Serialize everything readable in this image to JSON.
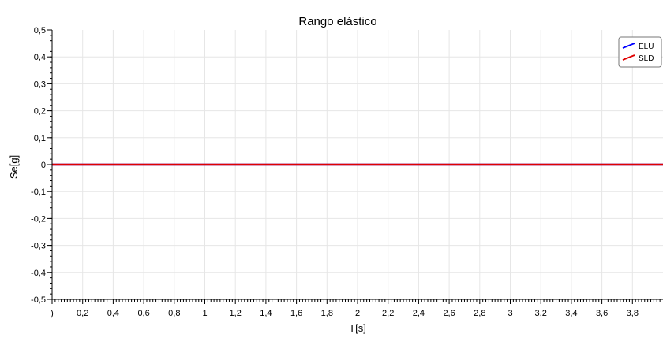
{
  "chart_data": {
    "type": "line",
    "title": "Rango elástico",
    "xlabel": "T[s]",
    "ylabel": "Se[g]",
    "xlim": [
      0,
      4
    ],
    "ylim": [
      -0.5,
      0.5
    ],
    "xticks": [
      0,
      0.2,
      0.4,
      0.6,
      0.8,
      1,
      1.2,
      1.4,
      1.6,
      1.8,
      2,
      2.2,
      2.4,
      2.6,
      2.8,
      3,
      3.2,
      3.4,
      3.6,
      3.8
    ],
    "xtick_labels": [
      ")",
      "0,2",
      "0,4",
      "0,6",
      "0,8",
      "1",
      "1,2",
      "1,4",
      "1,6",
      "1,8",
      "2",
      "2,2",
      "2,4",
      "2,6",
      "2,8",
      "3",
      "3,2",
      "3,4",
      "3,6",
      "3,8"
    ],
    "yticks": [
      0.5,
      0.4,
      0.3,
      0.2,
      0.1,
      0,
      -0.1,
      -0.2,
      -0.3,
      -0.4,
      -0.5
    ],
    "ytick_labels": [
      "0,5",
      "0,4",
      "0,3",
      "0,2",
      "0,1",
      "0",
      "-0,1",
      "-0,2",
      "-0,3",
      "-0,4",
      "-0,5"
    ],
    "grid": true,
    "legend_position": "top-right",
    "series": [
      {
        "name": "ELU",
        "color": "#0000ff",
        "x": [
          0,
          4
        ],
        "y": [
          0,
          0
        ]
      },
      {
        "name": "SLD",
        "color": "#e00000",
        "x": [
          0,
          4
        ],
        "y": [
          0,
          0
        ]
      }
    ]
  }
}
